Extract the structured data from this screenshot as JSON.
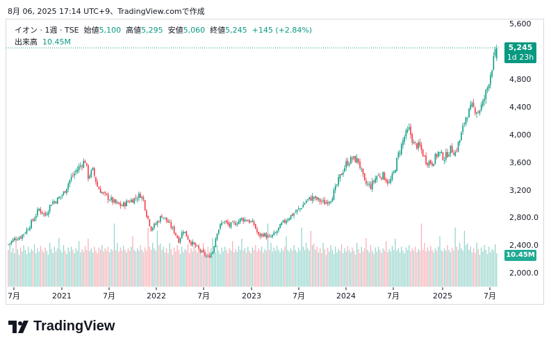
{
  "header": {
    "timestamp": "8月 06, 2025 17:14 UTC+9、TradingView.comで作成"
  },
  "legend": {
    "symbol": "イオン · 1週 · TSE",
    "open_label": "始値",
    "open": "5,100",
    "high_label": "高値",
    "high": "5,295",
    "low_label": "安値",
    "low": "5,060",
    "close_label": "終値",
    "close": "5,245",
    "change": "+145 (+2.84%)",
    "volume_label": "出来高",
    "volume": "10.45M"
  },
  "price_tag": {
    "price": "5,245",
    "countdown": "1d 23h"
  },
  "volume_tag": "10.45M",
  "logo": {
    "text": "TradingView"
  },
  "colors": {
    "up": "#089981",
    "down": "#f23645",
    "vol_up": "#8dd1c8",
    "vol_down": "#f7a9b1"
  },
  "chart_data": {
    "type": "candlestick",
    "y_ticks": [
      "5,600",
      "4,800",
      "4,400",
      "4,000",
      "3,600",
      "3,200",
      "2,800.0",
      "2,400.0",
      "2,000.0"
    ],
    "x_ticks": [
      "7月",
      "2021",
      "7月",
      "2022",
      "7月",
      "2023",
      "7月",
      "2024",
      "7月",
      "2025",
      "7月"
    ],
    "ylim": [
      1800,
      5700
    ],
    "series": [
      {
        "name": "price",
        "values": [
          [
            0,
            2410
          ],
          [
            4,
            2490
          ],
          [
            8,
            2520
          ],
          [
            12,
            2620
          ],
          [
            16,
            2760
          ],
          [
            20,
            2920
          ],
          [
            24,
            2830
          ],
          [
            28,
            3010
          ],
          [
            32,
            3060
          ],
          [
            36,
            3150
          ],
          [
            40,
            3340
          ],
          [
            44,
            3470
          ],
          [
            48,
            3580
          ],
          [
            50,
            3620
          ],
          [
            52,
            3390
          ],
          [
            55,
            3480
          ],
          [
            58,
            3250
          ],
          [
            62,
            3130
          ],
          [
            66,
            3070
          ],
          [
            70,
            3000
          ],
          [
            74,
            2970
          ],
          [
            78,
            3030
          ],
          [
            82,
            3070
          ],
          [
            86,
            3130
          ],
          [
            88,
            3050
          ],
          [
            90,
            2850
          ],
          [
            93,
            2640
          ],
          [
            96,
            2700
          ],
          [
            100,
            2830
          ],
          [
            104,
            2730
          ],
          [
            108,
            2600
          ],
          [
            111,
            2470
          ],
          [
            114,
            2620
          ],
          [
            118,
            2460
          ],
          [
            122,
            2380
          ],
          [
            126,
            2290
          ],
          [
            130,
            2220
          ],
          [
            133,
            2310
          ],
          [
            136,
            2600
          ],
          [
            140,
            2750
          ],
          [
            144,
            2680
          ],
          [
            148,
            2720
          ],
          [
            152,
            2780
          ],
          [
            156,
            2760
          ],
          [
            160,
            2700
          ],
          [
            163,
            2530
          ],
          [
            166,
            2560
          ],
          [
            170,
            2500
          ],
          [
            174,
            2570
          ],
          [
            178,
            2700
          ],
          [
            182,
            2790
          ],
          [
            186,
            2860
          ],
          [
            190,
            2930
          ],
          [
            194,
            3040
          ],
          [
            198,
            3090
          ],
          [
            202,
            3050
          ],
          [
            206,
            3010
          ],
          [
            210,
            3070
          ],
          [
            213,
            3210
          ],
          [
            216,
            3390
          ],
          [
            220,
            3580
          ],
          [
            224,
            3650
          ],
          [
            228,
            3620
          ],
          [
            232,
            3300
          ],
          [
            236,
            3250
          ],
          [
            240,
            3400
          ],
          [
            244,
            3410
          ],
          [
            248,
            3290
          ],
          [
            251,
            3440
          ],
          [
            254,
            3710
          ],
          [
            258,
            3970
          ],
          [
            261,
            4070
          ],
          [
            264,
            3860
          ],
          [
            268,
            3820
          ],
          [
            272,
            3620
          ],
          [
            276,
            3590
          ],
          [
            280,
            3740
          ],
          [
            284,
            3660
          ],
          [
            288,
            3790
          ],
          [
            291,
            3740
          ],
          [
            294,
            3920
          ],
          [
            298,
            4260
          ],
          [
            302,
            4400
          ],
          [
            306,
            4330
          ],
          [
            309,
            4450
          ],
          [
            312,
            4680
          ],
          [
            315,
            4980
          ],
          [
            318,
            5245
          ]
        ]
      }
    ],
    "volume": [
      0.46,
      0.5,
      0.43,
      0.48,
      0.42,
      0.55,
      0.47,
      0.4,
      0.49,
      0.44,
      0.52,
      0.46,
      0.41,
      0.5,
      0.43,
      0.47,
      0.45,
      0.53,
      0.42,
      0.48,
      0.44,
      0.51,
      0.46,
      0.43,
      0.49,
      0.45,
      0.4,
      0.55,
      0.47,
      0.42,
      0.5,
      0.44,
      0.48,
      0.61,
      0.46,
      0.43,
      0.52,
      0.45,
      0.41,
      0.49,
      0.44,
      0.5,
      0.46,
      0.42,
      0.48,
      0.45,
      0.57,
      0.43,
      0.47,
      0.44,
      0.51,
      0.46,
      0.6,
      0.45,
      0.48,
      0.43,
      0.5,
      0.45,
      0.42,
      0.49,
      0.46,
      0.52,
      0.44,
      0.48,
      0.45,
      0.5,
      0.43,
      0.47,
      0.45,
      0.79,
      0.46,
      0.55,
      0.44,
      0.49,
      0.45,
      0.51,
      0.46,
      0.43,
      0.48,
      0.45,
      0.5,
      0.63,
      0.46,
      0.44,
      0.48,
      0.45,
      0.52,
      0.46,
      0.43,
      0.49,
      0.45,
      0.74,
      0.5,
      0.46,
      0.55,
      0.48,
      0.45,
      0.7,
      0.52,
      0.54
    ]
  }
}
